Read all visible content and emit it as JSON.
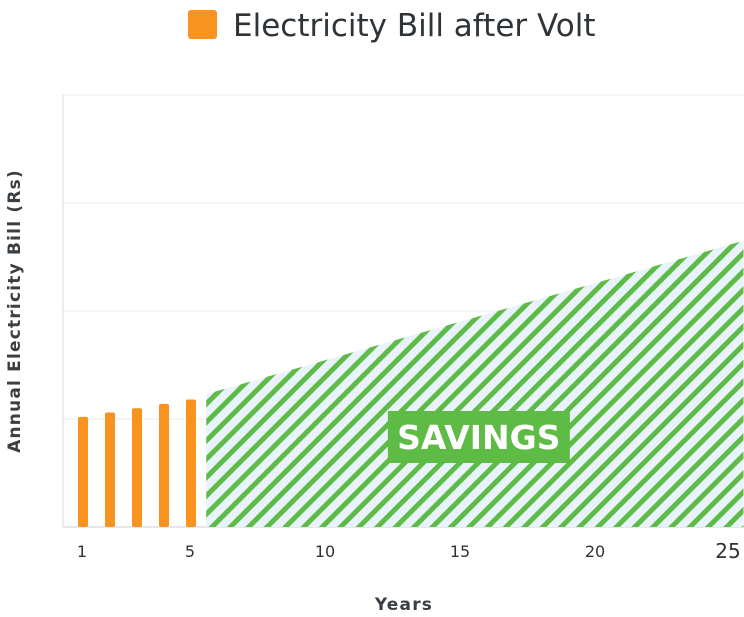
{
  "chart_data": {
    "type": "bar",
    "legend": {
      "label": "Electricity Bill after Volt",
      "color": "#f7931e",
      "placement": "top"
    },
    "xlabel": "Years",
    "ylabel": "Annual Electricity Bill (Rs)",
    "x_ticks": [
      "1",
      "5",
      "10",
      "15",
      "20",
      "25"
    ],
    "xlim": [
      0.5,
      25.5
    ],
    "ylim": [
      0,
      4
    ],
    "grid": true,
    "bars": {
      "x": [
        1,
        2,
        3,
        4,
        5
      ],
      "values": [
        1.02,
        1.06,
        1.1,
        1.14,
        1.18
      ],
      "color": "#f7931e"
    },
    "savings_area": {
      "label": "SAVINGS",
      "x_start": 5.6,
      "x_end": 25.5,
      "y_start": 1.23,
      "y_end": 2.65,
      "stripe_color": "#5dbb46",
      "fill_color": "#e9f3fb"
    }
  }
}
